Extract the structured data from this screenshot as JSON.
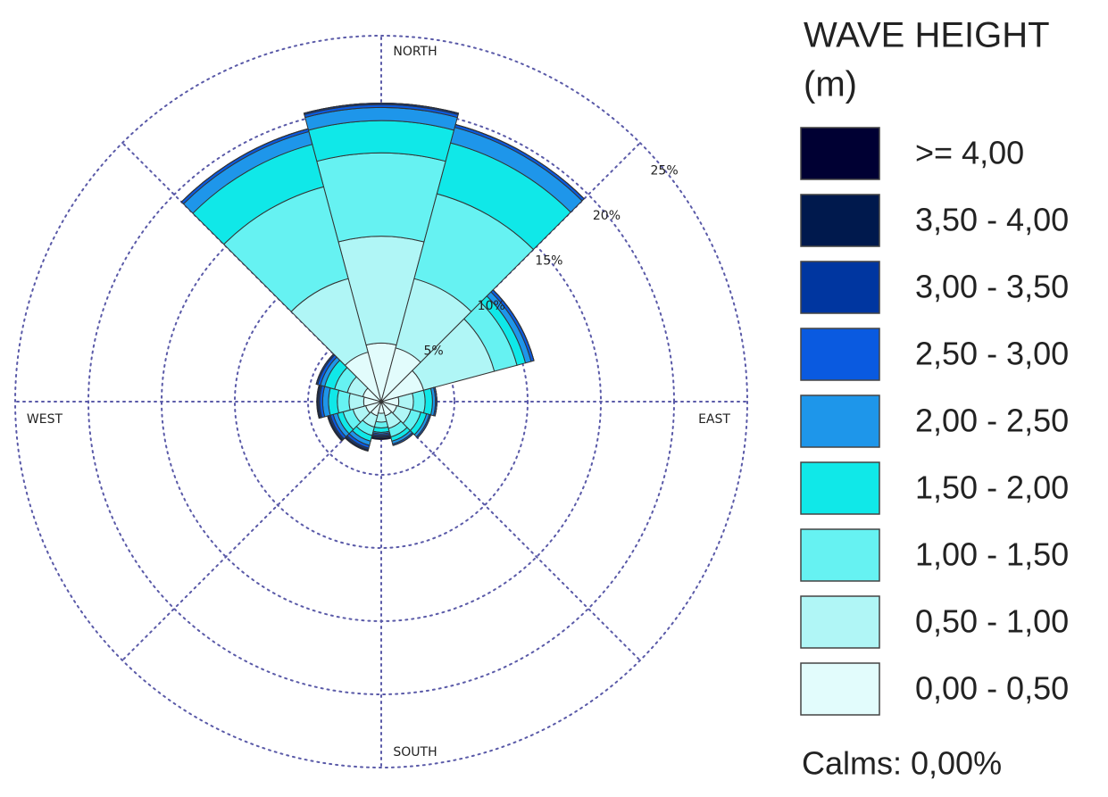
{
  "chart_data": {
    "type": "rose",
    "legend_title": "WAVE HEIGHT",
    "legend_unit": "(m)",
    "footer": "Calms: 0,00%",
    "direction_labels": {
      "north": "NORTH",
      "east": "EAST",
      "south": "SOUTH",
      "west": "WEST"
    },
    "categories": [
      null,
      null,
      null,
      null,
      null,
      null,
      null,
      null,
      null,
      null,
      null,
      null
    ],
    "rlim": [
      0,
      25
    ],
    "rticks": [
      {
        "value": 5,
        "label": "5%"
      },
      {
        "value": 10,
        "label": "10%"
      },
      {
        "value": 15,
        "label": "15%"
      },
      {
        "value": 20,
        "label": "20%"
      },
      {
        "value": 25,
        "label": "25%"
      }
    ],
    "grid": true,
    "series": [
      {
        "name": ">= 4,00",
        "color": "#000033",
        "values": [
          0,
          0,
          0,
          0,
          0,
          0,
          0.1,
          0,
          0,
          0,
          0,
          0
        ]
      },
      {
        "name": "3,50 - 4,00",
        "color": "#00194d",
        "values": [
          0,
          0,
          0,
          0,
          0,
          0,
          0.1,
          0.1,
          0.1,
          0.1,
          0,
          0
        ]
      },
      {
        "name": "3,00 - 3,50",
        "color": "#0036a0",
        "values": [
          0.1,
          0,
          0,
          0,
          0,
          0,
          0.1,
          0.1,
          0.1,
          0.1,
          0.1,
          0
        ]
      },
      {
        "name": "2,50 - 3,00",
        "color": "#0a5ae0",
        "values": [
          0.2,
          0.2,
          0.2,
          0.1,
          0.1,
          0.1,
          0.1,
          0.2,
          0.2,
          0.2,
          0.2,
          0.2
        ]
      },
      {
        "name": "2,00 - 2,50",
        "color": "#1e96ea",
        "values": [
          0.9,
          1.1,
          0.4,
          0.2,
          0.2,
          0.2,
          0.1,
          0.3,
          0.3,
          0.4,
          0.3,
          0.9
        ]
      },
      {
        "name": "1,50 - 2,00",
        "color": "#10e8e8",
        "values": [
          2.2,
          3.6,
          0.6,
          0.5,
          0.4,
          0.3,
          0.3,
          0.4,
          0.4,
          0.6,
          0.7,
          3.0
        ]
      },
      {
        "name": "1,00 - 1,50",
        "color": "#66f2f2",
        "values": [
          5.7,
          6.0,
          1.6,
          0.8,
          0.7,
          0.6,
          0.4,
          0.6,
          0.7,
          0.8,
          0.9,
          6.5
        ]
      },
      {
        "name": "0,50 - 1,00",
        "color": "#b0f6f6",
        "values": [
          7.3,
          4.9,
          5.0,
          1.0,
          1.0,
          0.9,
          0.6,
          0.8,
          0.9,
          1.0,
          1.1,
          5.2
        ]
      },
      {
        "name": "0,00 - 0,50",
        "color": "#e2fcfc",
        "values": [
          4.0,
          3.8,
          3.0,
          1.2,
          1.1,
          1.0,
          0.8,
          1.0,
          1.1,
          1.2,
          1.3,
          3.5
        ]
      }
    ]
  }
}
